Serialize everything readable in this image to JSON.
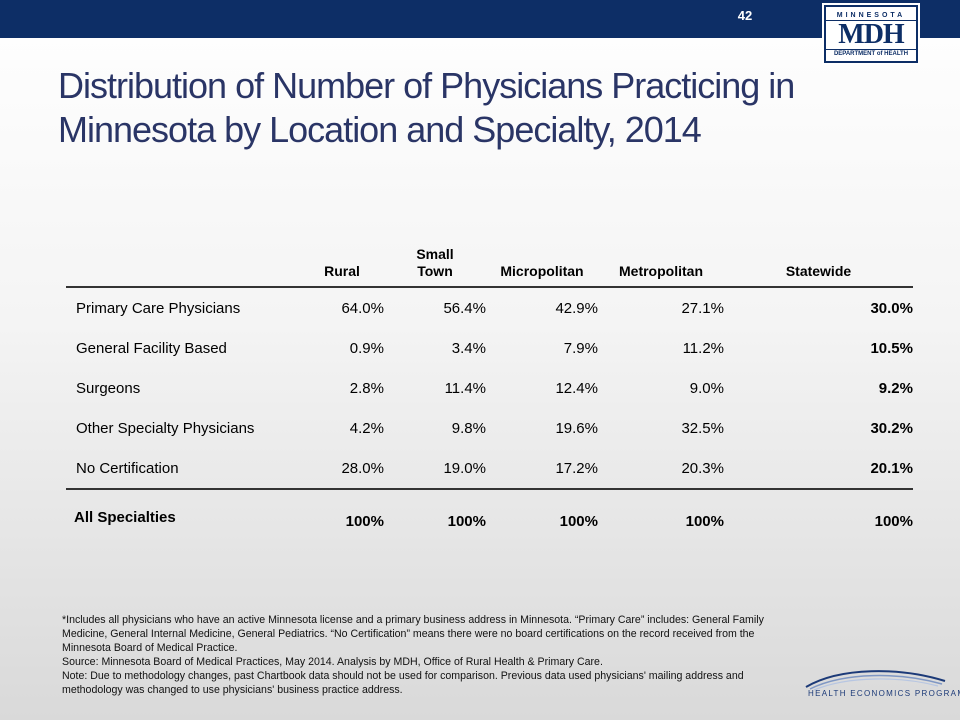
{
  "header": {
    "page_number": "42",
    "logo": {
      "top": "MINNESOTA",
      "mid": "MDH",
      "bottom": "DEPARTMENT of HEALTH"
    }
  },
  "title": "Distribution of Number of Physicians Practicing in Minnesota by Location and Specialty, 2014",
  "table": {
    "columns": [
      "Rural",
      "Small Town",
      "Micropolitan",
      "Metropolitan",
      "Statewide"
    ],
    "rows": [
      {
        "label": "Primary Care Physicians",
        "values": [
          "64.0%",
          "56.4%",
          "42.9%",
          "27.1%",
          "30.0%"
        ]
      },
      {
        "label": "General Facility Based",
        "values": [
          "0.9%",
          "3.4%",
          "7.9%",
          "11.2%",
          "10.5%"
        ]
      },
      {
        "label": "Surgeons",
        "values": [
          "2.8%",
          "11.4%",
          "12.4%",
          "9.0%",
          "9.2%"
        ]
      },
      {
        "label": "Other Specialty Physicians",
        "values": [
          "4.2%",
          "9.8%",
          "19.6%",
          "32.5%",
          "30.2%"
        ]
      },
      {
        "label": "No Certification",
        "values": [
          "28.0%",
          "19.0%",
          "17.2%",
          "20.3%",
          "20.1%"
        ]
      }
    ],
    "total": {
      "label": "All Specialties",
      "values": [
        "100%",
        "100%",
        "100%",
        "100%",
        "100%"
      ]
    }
  },
  "notes": [
    "*Includes all physicians who have an active Minnesota license and a primary business address in Minnesota. “Primary Care” includes: General Family Medicine, General Internal Medicine, General Pediatrics. “No Certification” means there were no board certifications on the record received from the Minnesota Board of Medical Practice.",
    "Source: Minnesota Board of Medical Practices, May 2014. Analysis by MDH, Office of Rural Health & Primary Care.",
    "Note: Due to methodology changes, past Chartbook data should not be used for comparison. Previous data used physicians' mailing address and methodology was changed to use physicians' business practice address."
  ],
  "footer_logo": {
    "text": "HEALTH ECONOMICS PROGRAM"
  },
  "colors": {
    "header_bar": "#0d2e66",
    "title": "#2a3566"
  }
}
